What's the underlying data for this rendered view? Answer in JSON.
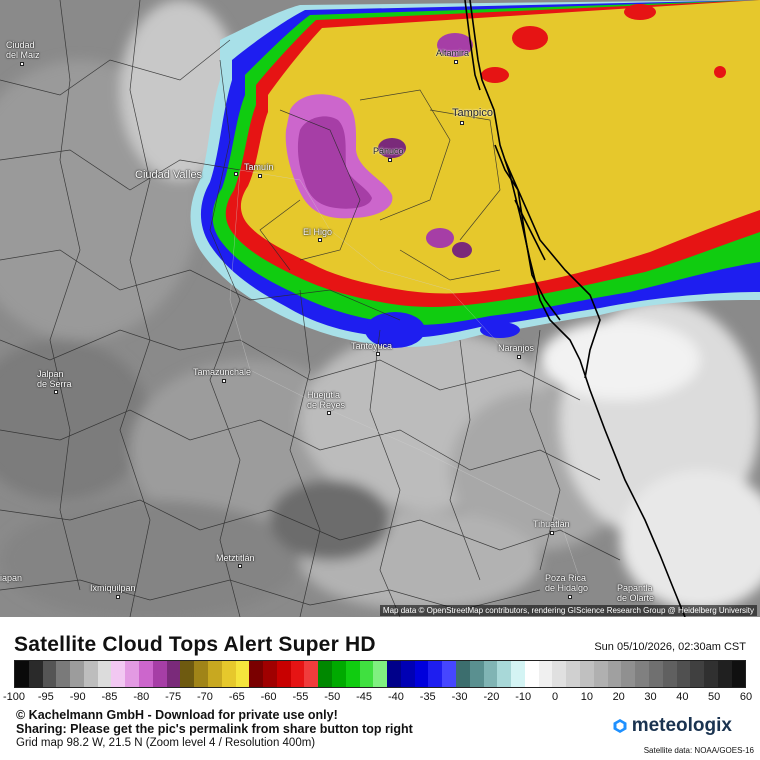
{
  "map": {
    "cities": [
      {
        "name": "Ciudad\ndel Maíz",
        "lines": [
          "Ciudad",
          "del Maíz"
        ],
        "key": "ciudad-del-maiz"
      },
      {
        "name": "Altamira",
        "key": "altamira"
      },
      {
        "name": "Tampico",
        "key": "tampico"
      },
      {
        "name": "Pánuco",
        "key": "panuco"
      },
      {
        "name": "Tamuín",
        "key": "tamuin"
      },
      {
        "name": "Ciudad Valles",
        "key": "ciudad-valles"
      },
      {
        "name": "El Higo",
        "key": "el-higo"
      },
      {
        "name": "Tantoyuca",
        "key": "tantoyuca"
      },
      {
        "name": "Naranjos",
        "key": "naranjos"
      },
      {
        "name": "Jalpan de Serra",
        "key": "jalpan-de-serra"
      },
      {
        "name": "Tamazunchale",
        "key": "tamazunchale"
      },
      {
        "name": "Huejutla de Reyes",
        "key": "huejutla-de-reyes"
      },
      {
        "name": "Tihuatlán",
        "key": "tihuatlan"
      },
      {
        "name": "Metztitlán",
        "key": "metztitlan"
      },
      {
        "name": "Ixmiquilpan",
        "key": "ixmiquilpan"
      },
      {
        "name": "Poza Rica de Hidalgo",
        "key": "poza-rica"
      },
      {
        "name": "Papantla de Olarte",
        "key": "papantla"
      },
      {
        "name": "iapan",
        "key": "iapan"
      }
    ],
    "labels": {
      "ciudad_del_maiz_1": "Ciudad",
      "ciudad_del_maiz_2": "del Maiz",
      "altamira": "Altamira",
      "tampico": "Tampico",
      "panuco": "Pánuco",
      "tamuin": "Tamuín",
      "ciudad_valles": "Ciudad Valles",
      "el_higo": "El Higo",
      "tantoyuca": "Tantoyuca",
      "naranjos": "Naranjos",
      "jalpan_1": "Jalpan",
      "jalpan_2": "de Serra",
      "tamazunchale": "Tamazunchale",
      "huejutla_1": "Huejutla",
      "huejutla_2": "de Reyes",
      "tihuatlan": "Tihuatlán",
      "metztitlan": "Metztitlán",
      "ixmiquilpan": "Ixmiquilpan",
      "poza_rica_1": "Poza Rica",
      "poza_rica_2": "de Hidalgo",
      "papantla_1": "Papantla",
      "papantla_2": "de Olarte",
      "iapan": "iapan"
    },
    "attribution": "Map data © OpenStreetMap contributors, rendering GIScience Research Group @ Heidelberg University"
  },
  "footer": {
    "title": "Satellite Cloud Tops Alert Super HD",
    "timestamp": "Sun 05/10/2026, 02:30am CST",
    "colorbar_labels": [
      "-100",
      "-95",
      "-90",
      "-85",
      "-80",
      "-75",
      "-70",
      "-65",
      "-60",
      "-55",
      "-50",
      "-45",
      "-40",
      "-35",
      "-30",
      "-20",
      "-10",
      "0",
      "10",
      "20",
      "30",
      "40",
      "50",
      "60"
    ],
    "copyright": "© Kachelmann GmbH - Download for private use only!",
    "sharing": "Sharing: Please get the pic's permalink from share button top right",
    "grid_info": "Grid map 98.2 W, 21.5 N (Zoom level 4 / Resolution 400m)",
    "brand": "meteologix",
    "satellite_credit": "Satellite data: NOAA/GOES-16"
  },
  "colors": {
    "colorbar": [
      "#0a0a0a",
      "#2a2a2a",
      "#555555",
      "#7a7a7a",
      "#9c9c9c",
      "#bdbdbd",
      "#dcdcdc",
      "#f2c8f2",
      "#e39ae3",
      "#cc66cc",
      "#a63ea6",
      "#7a2a7a",
      "#6e5a10",
      "#a08418",
      "#c8a820",
      "#e6c82c",
      "#f5e43c",
      "#7a0000",
      "#a00000",
      "#c80000",
      "#e61414",
      "#f03c3c",
      "#008800",
      "#00aa00",
      "#10cc10",
      "#40e040",
      "#80f080",
      "#00008a",
      "#0000b4",
      "#0000dc",
      "#1e1ef0",
      "#4646ff",
      "#3c6e6e",
      "#5a9090",
      "#80b4b4",
      "#a8d8d8",
      "#d4f4f4",
      "#ffffff",
      "#f0f0f0",
      "#e0e0e0",
      "#d0d0d0",
      "#c0c0c0",
      "#b0b0b0",
      "#a0a0a0",
      "#909090",
      "#808080",
      "#707070",
      "#606060",
      "#505050",
      "#404040",
      "#303030",
      "#202020",
      "#101010"
    ]
  }
}
